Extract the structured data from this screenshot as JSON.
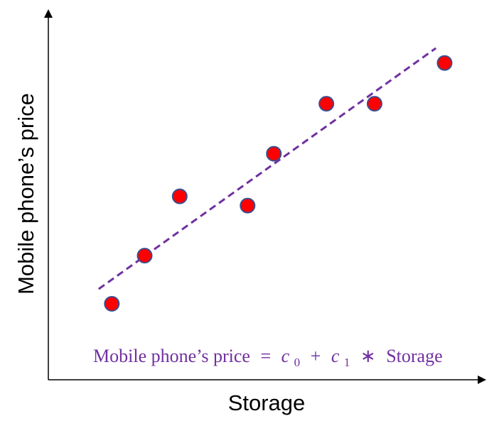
{
  "chart_data": {
    "type": "scatter",
    "title": "",
    "xlabel": "Storage",
    "ylabel": "Mobile phone’s price",
    "xlim": [
      0,
      100
    ],
    "ylim": [
      0,
      100
    ],
    "grid": false,
    "points": [
      {
        "x": 14.5,
        "y": 20.5
      },
      {
        "x": 22.0,
        "y": 33.5
      },
      {
        "x": 30.0,
        "y": 49.5
      },
      {
        "x": 45.5,
        "y": 47.0
      },
      {
        "x": 51.5,
        "y": 61.0
      },
      {
        "x": 63.5,
        "y": 74.5
      },
      {
        "x": 74.5,
        "y": 74.5
      },
      {
        "x": 90.5,
        "y": 85.5
      }
    ],
    "fit_line": {
      "x": [
        11.5,
        88.5
      ],
      "y": [
        24.5,
        89.5
      ]
    },
    "equation": {
      "lhs": "Mobile phone’s price",
      "equals": "=",
      "c0": "c",
      "c0_sub": "0",
      "plus": "+",
      "c1": "c",
      "c1_sub": "1",
      "times": "∗",
      "rhs": "Storage"
    },
    "colors": {
      "point_fill": "#ff0000",
      "point_stroke": "#3b4f8f",
      "fit_line": "#7030a0",
      "equation": "#7030a0",
      "axis": "#000000"
    }
  }
}
